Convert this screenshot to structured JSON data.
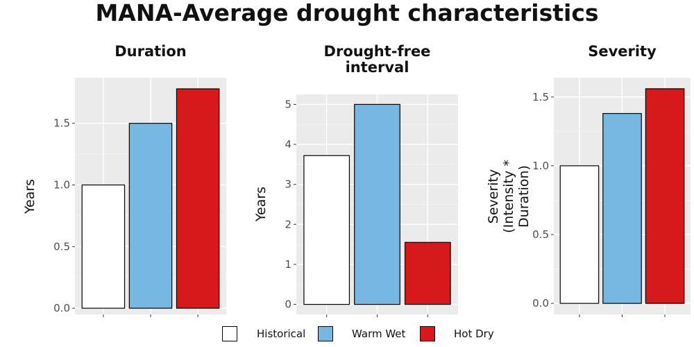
{
  "title": "MANA-Average drought characteristics",
  "legend": {
    "items": [
      {
        "label": "Historical",
        "color": "#ffffff"
      },
      {
        "label": "Warm Wet",
        "color": "#78b7e2"
      },
      {
        "label": "Hot Dry",
        "color": "#d7191c"
      }
    ]
  },
  "chart_data": [
    {
      "type": "bar",
      "title": "Duration",
      "ylabel": "Years",
      "categories": [
        "Historical",
        "Warm Wet",
        "Hot Dry"
      ],
      "values": [
        1.0,
        1.5,
        1.78
      ],
      "ylim": [
        -0.05,
        1.87
      ],
      "yticks": [
        0.0,
        0.5,
        1.0,
        1.5
      ],
      "ytick_labels": [
        "0.0",
        "0.5",
        "1.0",
        "1.5"
      ],
      "colors": [
        "#ffffff",
        "#78b7e2",
        "#d7191c"
      ],
      "grid": true
    },
    {
      "type": "bar",
      "title": "Drought-free\ninterval",
      "ylabel": "Years",
      "categories": [
        "Historical",
        "Warm Wet",
        "Hot Dry"
      ],
      "values": [
        3.72,
        5.0,
        1.55
      ],
      "ylim": [
        -0.25,
        5.25
      ],
      "yticks": [
        0,
        1,
        2,
        3,
        4,
        5
      ],
      "ytick_labels": [
        "0",
        "1",
        "2",
        "3",
        "4",
        "5"
      ],
      "colors": [
        "#ffffff",
        "#78b7e2",
        "#d7191c"
      ],
      "grid": true
    },
    {
      "type": "bar",
      "title": "Severity",
      "ylabel": "Severity\n(Intensity * Duration)",
      "categories": [
        "Historical",
        "Warm Wet",
        "Hot Dry"
      ],
      "values": [
        1.0,
        1.38,
        1.56
      ],
      "ylim": [
        -0.08,
        1.64
      ],
      "yticks": [
        0.0,
        0.5,
        1.0,
        1.5
      ],
      "ytick_labels": [
        "0.0",
        "0.5",
        "1.0",
        "1.5"
      ],
      "colors": [
        "#ffffff",
        "#78b7e2",
        "#d7191c"
      ],
      "grid": true
    }
  ]
}
